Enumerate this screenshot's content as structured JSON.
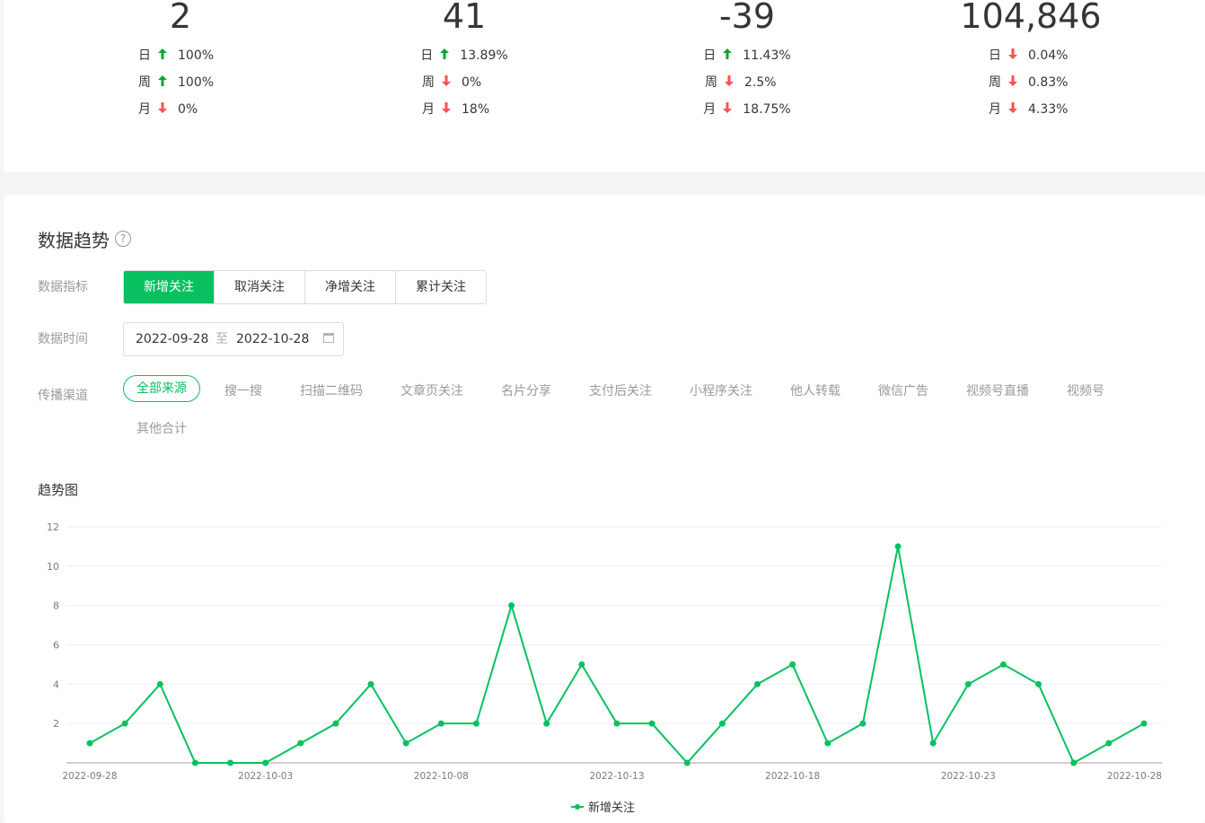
{
  "stats": [
    {
      "value": "2",
      "rows": [
        {
          "label": "日",
          "dir": "up",
          "pct": "100%"
        },
        {
          "label": "周",
          "dir": "up",
          "pct": "100%"
        },
        {
          "label": "月",
          "dir": "down",
          "pct": "0%"
        }
      ]
    },
    {
      "value": "41",
      "rows": [
        {
          "label": "日",
          "dir": "up",
          "pct": "13.89%"
        },
        {
          "label": "周",
          "dir": "down",
          "pct": "0%"
        },
        {
          "label": "月",
          "dir": "down",
          "pct": "18%"
        }
      ]
    },
    {
      "value": "-39",
      "rows": [
        {
          "label": "日",
          "dir": "up",
          "pct": "11.43%"
        },
        {
          "label": "周",
          "dir": "down",
          "pct": "2.5%"
        },
        {
          "label": "月",
          "dir": "down",
          "pct": "18.75%"
        }
      ]
    },
    {
      "value": "104,846",
      "rows": [
        {
          "label": "日",
          "dir": "down",
          "pct": "0.04%"
        },
        {
          "label": "周",
          "dir": "down",
          "pct": "0.83%"
        },
        {
          "label": "月",
          "dir": "down",
          "pct": "4.33%"
        }
      ]
    }
  ],
  "trend": {
    "title": "数据趋势",
    "help": "?",
    "metric_label": "数据指标",
    "metrics": [
      "新增关注",
      "取消关注",
      "净增关注",
      "累计关注"
    ],
    "time_label": "数据时间",
    "date_start": "2022-09-28",
    "date_sep": "至",
    "date_end": "2022-10-28",
    "channel_label": "传播渠道",
    "channels": [
      "全部来源",
      "搜一搜",
      "扫描二维码",
      "文章页关注",
      "名片分享",
      "支付后关注",
      "小程序关注",
      "他人转载",
      "微信广告",
      "视频号直播",
      "视频号",
      "其他合计"
    ],
    "chart_title": "趋势图"
  },
  "colors": {
    "accent": "#07c160",
    "up": "#07a62d",
    "down": "#fa5151"
  },
  "chart_data": {
    "type": "line",
    "x": [
      "2022-09-28",
      "2022-09-29",
      "2022-09-30",
      "2022-10-01",
      "2022-10-02",
      "2022-10-03",
      "2022-10-04",
      "2022-10-05",
      "2022-10-06",
      "2022-10-07",
      "2022-10-08",
      "2022-10-09",
      "2022-10-10",
      "2022-10-11",
      "2022-10-12",
      "2022-10-13",
      "2022-10-14",
      "2022-10-15",
      "2022-10-16",
      "2022-10-17",
      "2022-10-18",
      "2022-10-19",
      "2022-10-20",
      "2022-10-21",
      "2022-10-22",
      "2022-10-23",
      "2022-10-24",
      "2022-10-25",
      "2022-10-26",
      "2022-10-27",
      "2022-10-28"
    ],
    "series": [
      {
        "name": "新增关注",
        "values": [
          1,
          2,
          4,
          0,
          0,
          0,
          1,
          2,
          4,
          1,
          2,
          2,
          8,
          2,
          5,
          2,
          2,
          0,
          2,
          4,
          5,
          1,
          2,
          11,
          1,
          4,
          5,
          4,
          0,
          1,
          2
        ]
      }
    ],
    "x_tick_labels": [
      "2022-09-28",
      "2022-10-03",
      "2022-10-08",
      "2022-10-13",
      "2022-10-18",
      "2022-10-23",
      "2022-10-28"
    ],
    "y_ticks": [
      2,
      4,
      6,
      8,
      10,
      12
    ],
    "ylim": [
      0,
      12
    ],
    "grid": true,
    "legend": "bottom-center"
  }
}
